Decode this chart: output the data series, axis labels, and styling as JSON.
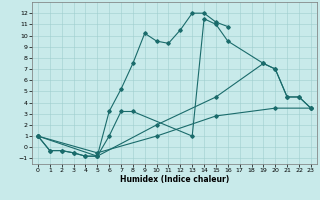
{
  "title": "",
  "xlabel": "Humidex (Indice chaleur)",
  "bg_color": "#c8eaea",
  "grid_color": "#9fcfcf",
  "line_color": "#1a6b6b",
  "xlim": [
    -0.5,
    23.5
  ],
  "ylim": [
    -1.5,
    13.0
  ],
  "xticks": [
    0,
    1,
    2,
    3,
    4,
    5,
    6,
    7,
    8,
    9,
    10,
    11,
    12,
    13,
    14,
    15,
    16,
    17,
    18,
    19,
    20,
    21,
    22,
    23
  ],
  "yticks": [
    -1,
    0,
    1,
    2,
    3,
    4,
    5,
    6,
    7,
    8,
    9,
    10,
    11,
    12
  ],
  "curves": [
    {
      "x": [
        0,
        1,
        2,
        3,
        4,
        5,
        6,
        7,
        8,
        9,
        10,
        11,
        12,
        13,
        14,
        15,
        16
      ],
      "y": [
        1.0,
        -0.3,
        -0.3,
        -0.5,
        -0.8,
        -0.8,
        3.2,
        5.2,
        7.5,
        10.2,
        9.5,
        9.3,
        10.5,
        12.0,
        12.0,
        11.2,
        10.8
      ]
    },
    {
      "x": [
        0,
        1,
        2,
        3,
        4,
        5,
        6,
        7,
        8,
        13,
        14,
        15,
        16,
        19,
        20,
        21,
        22,
        23
      ],
      "y": [
        1.0,
        -0.3,
        -0.3,
        -0.5,
        -0.8,
        -0.8,
        1.0,
        3.2,
        3.2,
        1.0,
        11.5,
        11.0,
        9.5,
        7.5,
        7.0,
        4.5,
        4.5,
        3.5
      ]
    },
    {
      "x": [
        0,
        5,
        10,
        15,
        19,
        20,
        21,
        22,
        23
      ],
      "y": [
        1.0,
        -0.8,
        2.0,
        4.5,
        7.5,
        7.0,
        4.5,
        4.5,
        3.5
      ]
    },
    {
      "x": [
        0,
        5,
        10,
        15,
        20,
        23
      ],
      "y": [
        1.0,
        -0.5,
        1.0,
        2.8,
        3.5,
        3.5
      ]
    }
  ]
}
